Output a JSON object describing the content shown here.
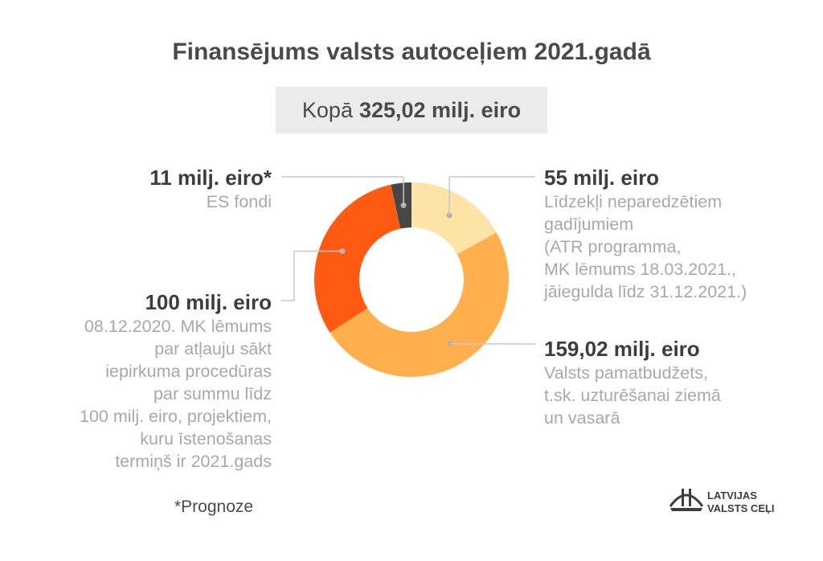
{
  "title": "Finansējums valsts autoceļiem 2021.gadā",
  "total": {
    "prefix": "Kopā",
    "value": "325,02 milj. eiro"
  },
  "chart_data": {
    "type": "pie",
    "total": 325.02,
    "unit": "milj. eiro",
    "slices": [
      {
        "key": "atr",
        "value": 55,
        "label": "55 milj. eiro",
        "desc": [
          "Līdzekļi neparedzētiem",
          "gadījumiem",
          "(ATR programma,",
          "MK lēmums 18.03.2021.,",
          "jāiegulda līdz 31.12.2021.)"
        ],
        "color": "#fde3a6"
      },
      {
        "key": "budget",
        "value": 159.02,
        "label": "159,02 milj. eiro",
        "desc": [
          "Valsts pamatbudžets,",
          "t.sk. uzturēšanai ziemā",
          "un vasarā"
        ],
        "color": "#ffb04d"
      },
      {
        "key": "mk",
        "value": 100,
        "label": "100 milj. eiro",
        "desc": [
          "08.12.2020. MK lēmums",
          "par atļauju sākt",
          "iepirkuma procedūras",
          "par summu līdz",
          "100 milj. eiro, projektiem,",
          "kuru īstenošanas",
          "termiņš ir 2021.gads"
        ],
        "color": "#ff5a12"
      },
      {
        "key": "es",
        "value": 11,
        "label": "11 milj. eiro*",
        "desc": [
          "ES fondi"
        ],
        "color": "#474747"
      }
    ]
  },
  "footnote": "*Prognoze",
  "logo": {
    "line1": "LATVIJAS",
    "line2": "VALSTS CEĻI"
  }
}
